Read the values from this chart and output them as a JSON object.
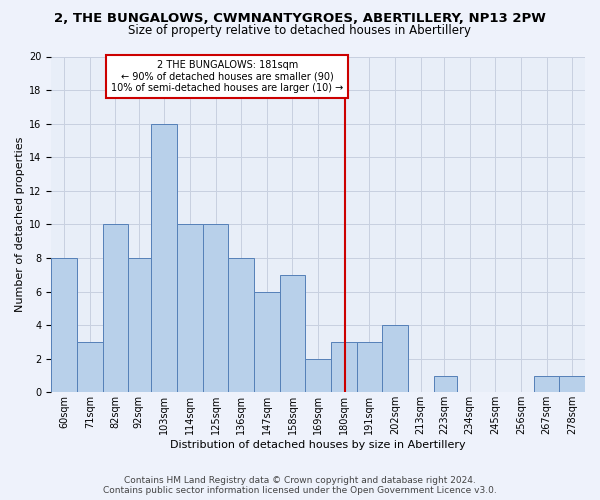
{
  "title1": "2, THE BUNGALOWS, CWMNANTYGROES, ABERTILLERY, NP13 2PW",
  "title2": "Size of property relative to detached houses in Abertillery",
  "xlabel": "Distribution of detached houses by size in Abertillery",
  "ylabel": "Number of detached properties",
  "bar_labels": [
    "60sqm",
    "71sqm",
    "82sqm",
    "92sqm",
    "103sqm",
    "114sqm",
    "125sqm",
    "136sqm",
    "147sqm",
    "158sqm",
    "169sqm",
    "180sqm",
    "191sqm",
    "202sqm",
    "213sqm",
    "223sqm",
    "234sqm",
    "245sqm",
    "256sqm",
    "267sqm",
    "278sqm"
  ],
  "bar_values": [
    8,
    3,
    10,
    8,
    16,
    10,
    10,
    8,
    6,
    7,
    2,
    3,
    3,
    4,
    0,
    1,
    0,
    0,
    0,
    1,
    1
  ],
  "bar_edges": [
    54.5,
    65.5,
    76.5,
    87.5,
    97.5,
    108.5,
    119.5,
    130.5,
    141.5,
    152.5,
    163.5,
    174.5,
    185.5,
    196.5,
    207.5,
    218.5,
    228.5,
    239.5,
    250.5,
    261.5,
    272.5,
    283.5
  ],
  "bar_centers": [
    60,
    71,
    82,
    92,
    103,
    114,
    125,
    136,
    147,
    158,
    169,
    180,
    191,
    202,
    213,
    223,
    234,
    245,
    256,
    267,
    278
  ],
  "vline_x": 180.5,
  "vline_color": "#cc0000",
  "annotation_title": "2 THE BUNGALOWS: 181sqm",
  "annotation_line1": "← 90% of detached houses are smaller (90)",
  "annotation_line2": "10% of semi-detached houses are larger (10) →",
  "annotation_box_color": "#ffffff",
  "annotation_box_edgecolor": "#cc0000",
  "ylim": [
    0,
    20
  ],
  "yticks": [
    0,
    2,
    4,
    6,
    8,
    10,
    12,
    14,
    16,
    18,
    20
  ],
  "footer1": "Contains HM Land Registry data © Crown copyright and database right 2024.",
  "footer2": "Contains public sector information licensed under the Open Government Licence v3.0.",
  "bg_color": "#eef2fb",
  "plot_bg_color": "#e8eef8",
  "grid_color": "#c8d0e0",
  "bar_color": "#b8d0ea",
  "bar_edgecolor": "#5580b8",
  "title1_fontsize": 9.5,
  "title2_fontsize": 8.5,
  "xlabel_fontsize": 8,
  "ylabel_fontsize": 8,
  "tick_fontsize": 7,
  "annot_fontsize": 7,
  "footer_fontsize": 6.5
}
